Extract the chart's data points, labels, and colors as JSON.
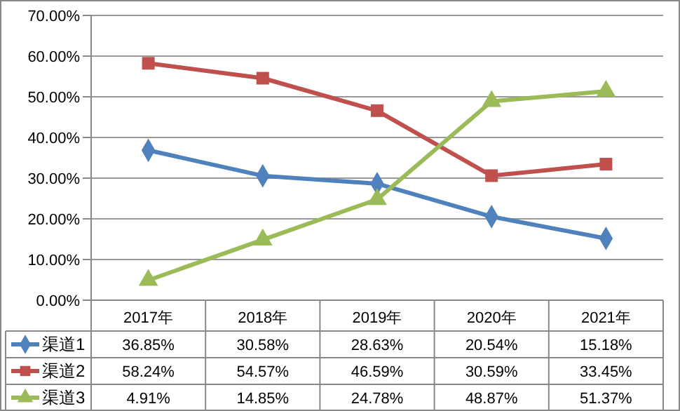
{
  "chart_data": {
    "type": "line",
    "categories": [
      "2017年",
      "2018年",
      "2019年",
      "2020年",
      "2021年"
    ],
    "series": [
      {
        "name": "渠道1",
        "color": "#4f81bd",
        "marker": "diamond",
        "values": [
          36.85,
          30.58,
          28.63,
          20.54,
          15.18
        ],
        "value_labels": [
          "36.85%",
          "30.58%",
          "28.63%",
          "20.54%",
          "15.18%"
        ]
      },
      {
        "name": "渠道2",
        "color": "#c0504d",
        "marker": "square",
        "values": [
          58.24,
          54.57,
          46.59,
          30.59,
          33.45
        ],
        "value_labels": [
          "58.24%",
          "54.57%",
          "46.59%",
          "30.59%",
          "33.45%"
        ]
      },
      {
        "name": "渠道3",
        "color": "#9bbb59",
        "marker": "triangle",
        "values": [
          4.91,
          14.85,
          24.78,
          48.87,
          51.37
        ],
        "value_labels": [
          "4.91%",
          "14.85%",
          "24.78%",
          "48.87%",
          "51.37%"
        ]
      }
    ],
    "ylim": [
      0,
      70
    ],
    "yticks": [
      {
        "value": 0,
        "label": "0.00%"
      },
      {
        "value": 10,
        "label": "10.00%"
      },
      {
        "value": 20,
        "label": "20.00%"
      },
      {
        "value": 30,
        "label": "30.00%"
      },
      {
        "value": 40,
        "label": "40.00%"
      },
      {
        "value": 50,
        "label": "50.00%"
      },
      {
        "value": 60,
        "label": "60.00%"
      },
      {
        "value": 70,
        "label": "70.00%"
      }
    ],
    "grid": "y",
    "legend": "bottom",
    "line_style": "solid"
  }
}
